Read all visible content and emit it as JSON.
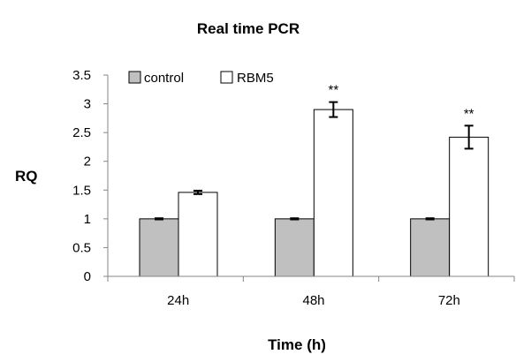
{
  "chart_data": {
    "type": "bar",
    "title": "Real time PCR",
    "xlabel": "Time (h)",
    "ylabel": "RQ",
    "categories": [
      "24h",
      "48h",
      "72h"
    ],
    "series": [
      {
        "name": "control",
        "values": [
          1.0,
          1.0,
          1.0
        ],
        "error": [
          0.01,
          0.01,
          0.01
        ],
        "color": "#c0c0c0"
      },
      {
        "name": "RBM5",
        "values": [
          1.46,
          2.9,
          2.42
        ],
        "error": [
          0.03,
          0.13,
          0.2
        ],
        "color": "#ffffff"
      }
    ],
    "annotations": [
      {
        "category": "48h",
        "series": "RBM5",
        "text": "**"
      },
      {
        "category": "72h",
        "series": "RBM5",
        "text": "**"
      }
    ],
    "ylim": [
      0,
      3.5
    ],
    "yticks": [
      "0",
      "0.5",
      "1",
      "1.5",
      "2",
      "2.5",
      "3",
      "3.5"
    ],
    "grid": false,
    "legend_position": "top-left"
  }
}
